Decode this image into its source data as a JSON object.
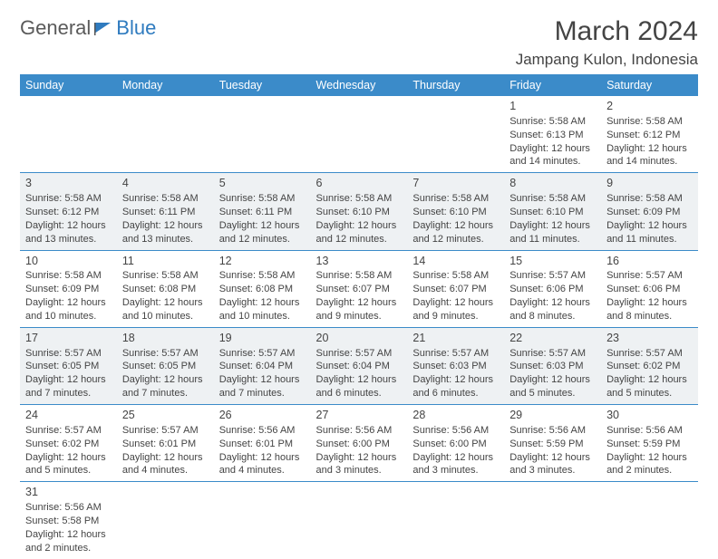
{
  "logo": {
    "text_general": "General",
    "text_blue": "Blue",
    "color": "#2f7bbf"
  },
  "title": {
    "month": "March 2024",
    "location": "Jampang Kulon, Indonesia"
  },
  "colors": {
    "header_bg": "#3b8bc9",
    "header_fg": "#ffffff",
    "shaded_bg": "#eef1f3",
    "rule": "#3b8bc9",
    "text": "#444444"
  },
  "daynames": [
    "Sunday",
    "Monday",
    "Tuesday",
    "Wednesday",
    "Thursday",
    "Friday",
    "Saturday"
  ],
  "weeks": [
    [
      null,
      null,
      null,
      null,
      null,
      {
        "n": "1",
        "sr": "Sunrise: 5:58 AM",
        "ss": "Sunset: 6:13 PM",
        "d1": "Daylight: 12 hours",
        "d2": "and 14 minutes."
      },
      {
        "n": "2",
        "sr": "Sunrise: 5:58 AM",
        "ss": "Sunset: 6:12 PM",
        "d1": "Daylight: 12 hours",
        "d2": "and 14 minutes."
      }
    ],
    [
      {
        "n": "3",
        "sr": "Sunrise: 5:58 AM",
        "ss": "Sunset: 6:12 PM",
        "d1": "Daylight: 12 hours",
        "d2": "and 13 minutes."
      },
      {
        "n": "4",
        "sr": "Sunrise: 5:58 AM",
        "ss": "Sunset: 6:11 PM",
        "d1": "Daylight: 12 hours",
        "d2": "and 13 minutes."
      },
      {
        "n": "5",
        "sr": "Sunrise: 5:58 AM",
        "ss": "Sunset: 6:11 PM",
        "d1": "Daylight: 12 hours",
        "d2": "and 12 minutes."
      },
      {
        "n": "6",
        "sr": "Sunrise: 5:58 AM",
        "ss": "Sunset: 6:10 PM",
        "d1": "Daylight: 12 hours",
        "d2": "and 12 minutes."
      },
      {
        "n": "7",
        "sr": "Sunrise: 5:58 AM",
        "ss": "Sunset: 6:10 PM",
        "d1": "Daylight: 12 hours",
        "d2": "and 12 minutes."
      },
      {
        "n": "8",
        "sr": "Sunrise: 5:58 AM",
        "ss": "Sunset: 6:10 PM",
        "d1": "Daylight: 12 hours",
        "d2": "and 11 minutes."
      },
      {
        "n": "9",
        "sr": "Sunrise: 5:58 AM",
        "ss": "Sunset: 6:09 PM",
        "d1": "Daylight: 12 hours",
        "d2": "and 11 minutes."
      }
    ],
    [
      {
        "n": "10",
        "sr": "Sunrise: 5:58 AM",
        "ss": "Sunset: 6:09 PM",
        "d1": "Daylight: 12 hours",
        "d2": "and 10 minutes."
      },
      {
        "n": "11",
        "sr": "Sunrise: 5:58 AM",
        "ss": "Sunset: 6:08 PM",
        "d1": "Daylight: 12 hours",
        "d2": "and 10 minutes."
      },
      {
        "n": "12",
        "sr": "Sunrise: 5:58 AM",
        "ss": "Sunset: 6:08 PM",
        "d1": "Daylight: 12 hours",
        "d2": "and 10 minutes."
      },
      {
        "n": "13",
        "sr": "Sunrise: 5:58 AM",
        "ss": "Sunset: 6:07 PM",
        "d1": "Daylight: 12 hours",
        "d2": "and 9 minutes."
      },
      {
        "n": "14",
        "sr": "Sunrise: 5:58 AM",
        "ss": "Sunset: 6:07 PM",
        "d1": "Daylight: 12 hours",
        "d2": "and 9 minutes."
      },
      {
        "n": "15",
        "sr": "Sunrise: 5:57 AM",
        "ss": "Sunset: 6:06 PM",
        "d1": "Daylight: 12 hours",
        "d2": "and 8 minutes."
      },
      {
        "n": "16",
        "sr": "Sunrise: 5:57 AM",
        "ss": "Sunset: 6:06 PM",
        "d1": "Daylight: 12 hours",
        "d2": "and 8 minutes."
      }
    ],
    [
      {
        "n": "17",
        "sr": "Sunrise: 5:57 AM",
        "ss": "Sunset: 6:05 PM",
        "d1": "Daylight: 12 hours",
        "d2": "and 7 minutes."
      },
      {
        "n": "18",
        "sr": "Sunrise: 5:57 AM",
        "ss": "Sunset: 6:05 PM",
        "d1": "Daylight: 12 hours",
        "d2": "and 7 minutes."
      },
      {
        "n": "19",
        "sr": "Sunrise: 5:57 AM",
        "ss": "Sunset: 6:04 PM",
        "d1": "Daylight: 12 hours",
        "d2": "and 7 minutes."
      },
      {
        "n": "20",
        "sr": "Sunrise: 5:57 AM",
        "ss": "Sunset: 6:04 PM",
        "d1": "Daylight: 12 hours",
        "d2": "and 6 minutes."
      },
      {
        "n": "21",
        "sr": "Sunrise: 5:57 AM",
        "ss": "Sunset: 6:03 PM",
        "d1": "Daylight: 12 hours",
        "d2": "and 6 minutes."
      },
      {
        "n": "22",
        "sr": "Sunrise: 5:57 AM",
        "ss": "Sunset: 6:03 PM",
        "d1": "Daylight: 12 hours",
        "d2": "and 5 minutes."
      },
      {
        "n": "23",
        "sr": "Sunrise: 5:57 AM",
        "ss": "Sunset: 6:02 PM",
        "d1": "Daylight: 12 hours",
        "d2": "and 5 minutes."
      }
    ],
    [
      {
        "n": "24",
        "sr": "Sunrise: 5:57 AM",
        "ss": "Sunset: 6:02 PM",
        "d1": "Daylight: 12 hours",
        "d2": "and 5 minutes."
      },
      {
        "n": "25",
        "sr": "Sunrise: 5:57 AM",
        "ss": "Sunset: 6:01 PM",
        "d1": "Daylight: 12 hours",
        "d2": "and 4 minutes."
      },
      {
        "n": "26",
        "sr": "Sunrise: 5:56 AM",
        "ss": "Sunset: 6:01 PM",
        "d1": "Daylight: 12 hours",
        "d2": "and 4 minutes."
      },
      {
        "n": "27",
        "sr": "Sunrise: 5:56 AM",
        "ss": "Sunset: 6:00 PM",
        "d1": "Daylight: 12 hours",
        "d2": "and 3 minutes."
      },
      {
        "n": "28",
        "sr": "Sunrise: 5:56 AM",
        "ss": "Sunset: 6:00 PM",
        "d1": "Daylight: 12 hours",
        "d2": "and 3 minutes."
      },
      {
        "n": "29",
        "sr": "Sunrise: 5:56 AM",
        "ss": "Sunset: 5:59 PM",
        "d1": "Daylight: 12 hours",
        "d2": "and 3 minutes."
      },
      {
        "n": "30",
        "sr": "Sunrise: 5:56 AM",
        "ss": "Sunset: 5:59 PM",
        "d1": "Daylight: 12 hours",
        "d2": "and 2 minutes."
      }
    ],
    [
      {
        "n": "31",
        "sr": "Sunrise: 5:56 AM",
        "ss": "Sunset: 5:58 PM",
        "d1": "Daylight: 12 hours",
        "d2": "and 2 minutes."
      },
      null,
      null,
      null,
      null,
      null,
      null
    ]
  ],
  "shaded_rows": [
    1,
    3
  ]
}
